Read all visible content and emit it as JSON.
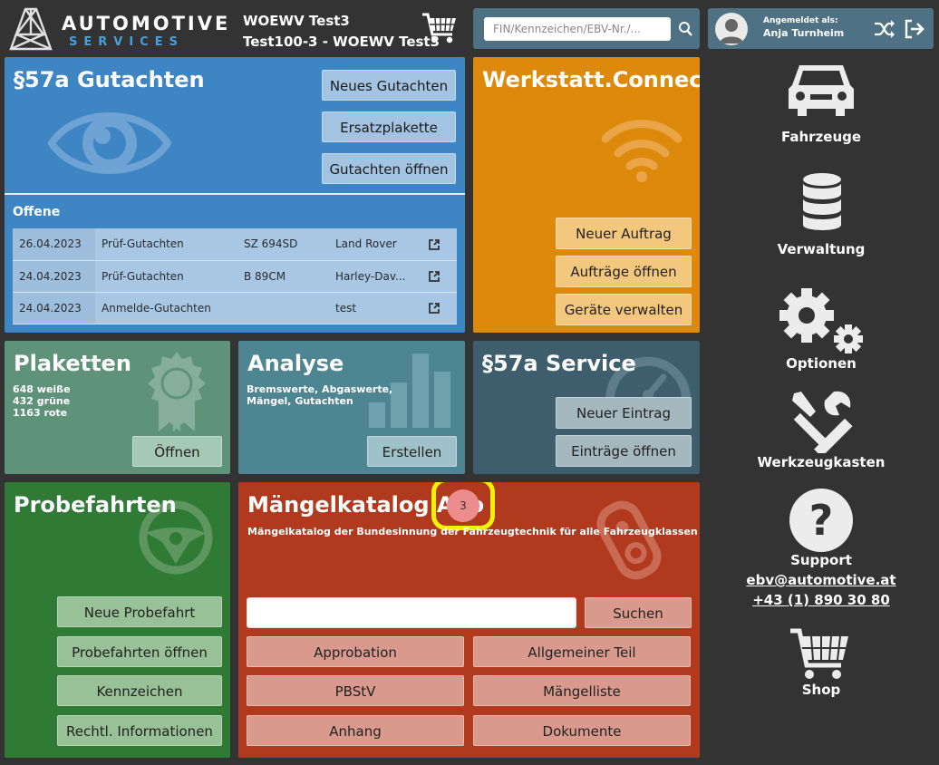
{
  "header": {
    "logo_word": "AUTOMOTIVE",
    "logo_sub": "SERVICES",
    "context_line1": "WOEWV Test3",
    "context_line2": "Test100-3 - WOEWV Test3",
    "search_placeholder": "FIN/Kennzeichen/EBV-Nr./...",
    "user_label": "Angemeldet als:",
    "user_name": "Anja Turnheim"
  },
  "gutachten": {
    "title": "§57a Gutachten",
    "buttons": [
      "Neues Gutachten",
      "Ersatzplakette",
      "Gutachten öffnen"
    ],
    "open_label": "Offene",
    "rows": [
      {
        "date": "26.04.2023",
        "type": "Prüf-Gutachten",
        "plate": "SZ 694SD",
        "vehicle": "Land Rover"
      },
      {
        "date": "24.04.2023",
        "type": "Prüf-Gutachten",
        "plate": "B 89CM",
        "vehicle": "Harley-Dav..."
      },
      {
        "date": "24.04.2023",
        "type": "Anmelde-Gutachten",
        "plate": "",
        "vehicle": "test"
      }
    ]
  },
  "werkstatt": {
    "title": "Werkstatt.Connect",
    "buttons": [
      "Neuer Auftrag",
      "Aufträge öffnen",
      "Geräte verwalten"
    ]
  },
  "plaketten": {
    "title": "Plaketten",
    "line1": "648 weiße",
    "line2": "432 grüne",
    "line3": "1163 rote",
    "button": "Öffnen"
  },
  "analyse": {
    "title": "Analyse",
    "line1": "Bremswerte, Abgaswerte,",
    "line2": "Mängel, Gutachten",
    "button": "Erstellen"
  },
  "service": {
    "title": "§57a Service",
    "buttons": [
      "Neuer Eintrag",
      "Einträge öffnen"
    ]
  },
  "probefahrten": {
    "title": "Probefahrten",
    "buttons": [
      "Neue Probefahrt",
      "Probefahrten öffnen",
      "Kennzeichen",
      "Rechtl. Informationen"
    ]
  },
  "maengel": {
    "title": "Mängelkatalog Abo",
    "badge": "3",
    "subtitle": "Mängelkatalog der Bundesinnung der Fahrzeugtechnik für alle Fahrzeugklassen",
    "search_button": "Suchen",
    "buttons": [
      "Approbation",
      "Allgemeiner Teil",
      "PBStV",
      "Mängelliste",
      "Anhang",
      "Dokumente"
    ]
  },
  "sidebar": {
    "fahrzeuge": "Fahrzeuge",
    "verwaltung": "Verwaltung",
    "optionen": "Optionen",
    "werkzeugkasten": "Werkzeugkasten",
    "support": "Support",
    "support_email": "ebv@automotive.at",
    "support_phone": "+43 (1) 890 30 80",
    "shop": "Shop"
  },
  "colors": {
    "background": "#333333",
    "gutachten": "#3e85c4",
    "werkstatt": "#dd8a0c",
    "plaketten": "#5f9379",
    "analyse": "#4e8593",
    "service": "#3f5e6d",
    "probefahrten": "#2f7a35",
    "maengel": "#b0391e",
    "highlight": "#f2f200",
    "badge": "#ec8c8c"
  }
}
